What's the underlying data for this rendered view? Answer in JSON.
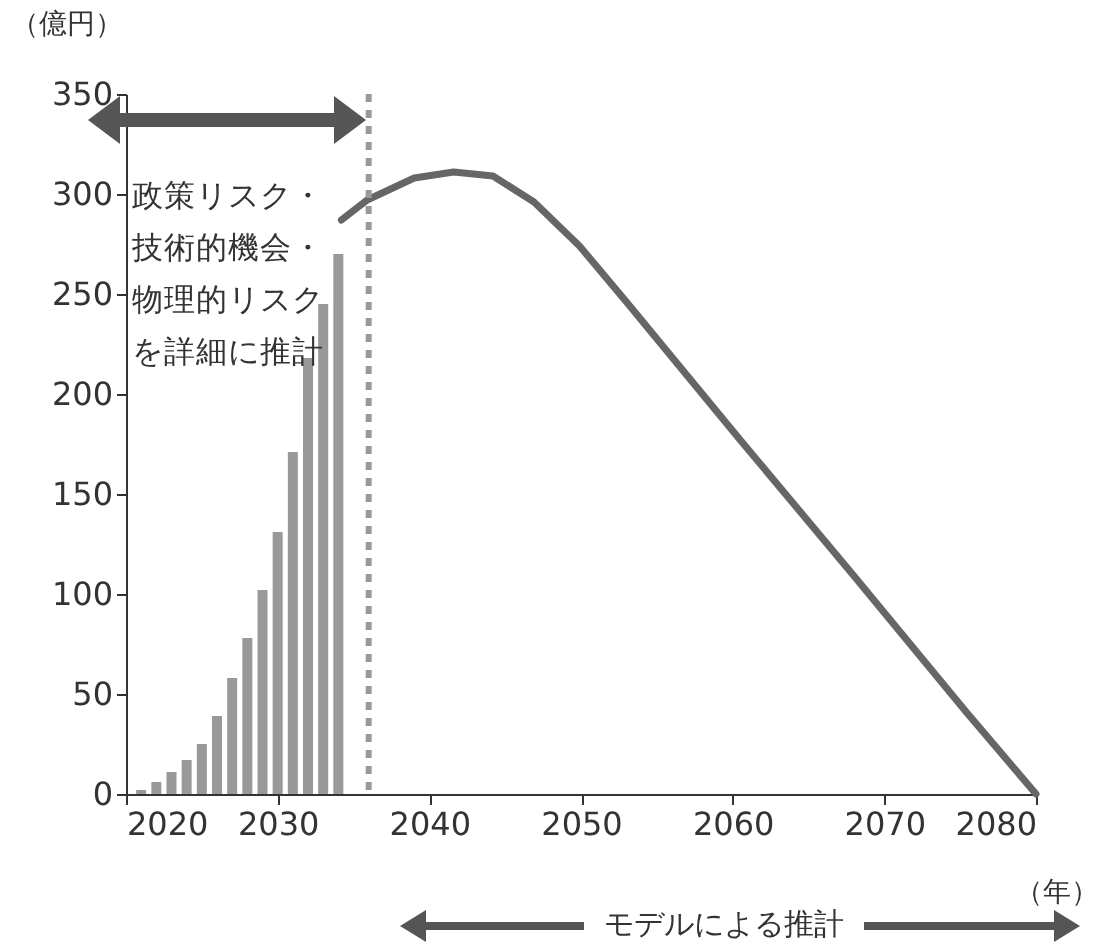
{
  "chart_data": {
    "type": "line",
    "xlabel": "（年）",
    "ylabel": "（億円）",
    "xlim": [
      2020,
      2080
    ],
    "xticks": [
      2020,
      2030,
      2040,
      2050,
      2060,
      2070,
      2080
    ],
    "ylim": [
      0,
      350
    ],
    "yticks": [
      0,
      50,
      100,
      150,
      200,
      250,
      300,
      350
    ],
    "grid": false,
    "series": [
      {
        "type": "bar",
        "color": "#999999",
        "x": [
          2021,
          2022,
          2023,
          2024,
          2025,
          2026,
          2027,
          2028,
          2029,
          2030,
          2031,
          2032,
          2033,
          2034
        ],
        "values": [
          2,
          6,
          11,
          17,
          25,
          39,
          58,
          78,
          102,
          131,
          171,
          218,
          245,
          270
        ]
      },
      {
        "color": "#666666",
        "x": [
          2034.2,
          2035.9,
          2039,
          2041.6,
          2044.2,
          2046.9,
          2049.9,
          2053,
          2060.5,
          2068,
          2075.4,
          2080
        ],
        "values": [
          287,
          297,
          308,
          311,
          309,
          296,
          274,
          246,
          177,
          109,
          41,
          0
        ]
      }
    ],
    "ref_lines": [
      {
        "axis": "x",
        "value": 2036,
        "color": "#999999",
        "line_style": "dotted"
      }
    ],
    "annotations": [
      "政策リスク・技術的機会・物理的リスクを詳細に推計",
      "モデルによる推計"
    ]
  }
}
